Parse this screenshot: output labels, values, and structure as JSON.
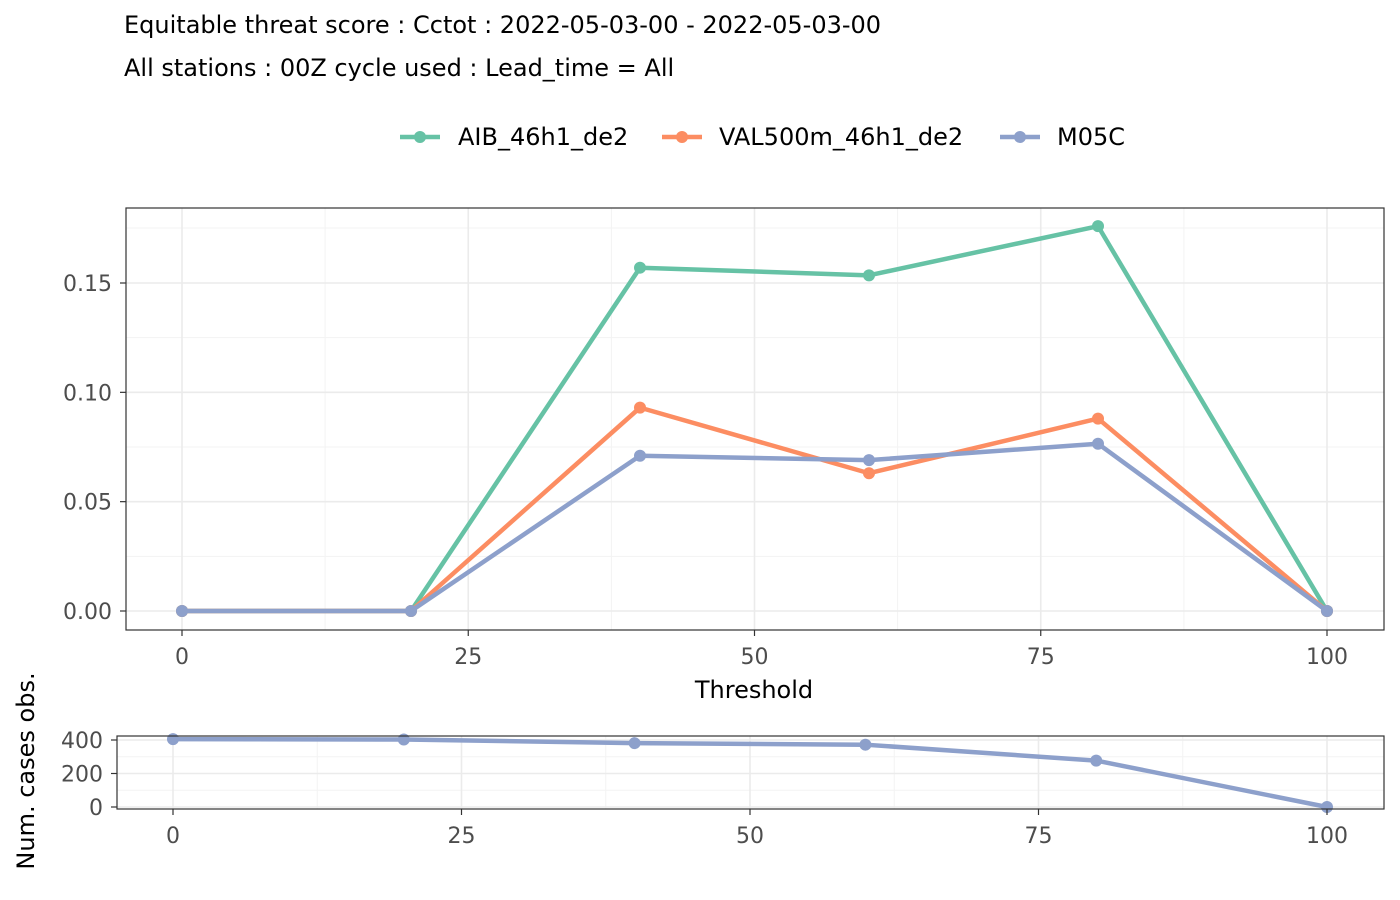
{
  "title_line1": "Equitable threat score : Cctot : 2022-05-03-00 - 2022-05-03-00",
  "title_line2": "All stations : 00Z cycle used : Lead_time = All",
  "chart_data": [
    {
      "type": "line",
      "xlabel": "Threshold",
      "ylabel": "",
      "xlim": [
        -2,
        105
      ],
      "ylim": [
        -0.007,
        0.153
      ],
      "ylim_note": "",
      "x": [
        0,
        20,
        40,
        60,
        80,
        100
      ],
      "xticks": [
        0,
        25,
        50,
        75,
        100
      ],
      "yticks": [
        0.0,
        0.05,
        0.1,
        0.15
      ],
      "ytick_labels": [
        "0.00",
        "0.05",
        "0.10",
        "0.15"
      ],
      "xtick_labels": [
        "0",
        "25",
        "50",
        "75",
        "100"
      ],
      "grid": true,
      "legend_position": "top",
      "series": [
        {
          "name": "AIB_46h1_de2",
          "color": "#66c2a5",
          "values": [
            0,
            0,
            0.157,
            0.1535,
            0.176,
            0
          ]
        },
        {
          "name": "VAL500m_46h1_de2",
          "color": "#fc8d62",
          "values": [
            0,
            0,
            0.093,
            0.063,
            0.088,
            0
          ]
        },
        {
          "name": "M05C",
          "color": "#8da0cb",
          "values": [
            0,
            0,
            0.071,
            0.069,
            0.0765,
            0
          ]
        }
      ]
    },
    {
      "type": "line",
      "xlabel": "",
      "ylabel": "Num. cases obs.",
      "x": [
        0,
        20,
        40,
        60,
        80,
        100
      ],
      "xticks": [
        0,
        25,
        50,
        75,
        100
      ],
      "xtick_labels": [
        "0",
        "25",
        "50",
        "75",
        "100"
      ],
      "yticks": [
        0,
        200,
        400
      ],
      "ytick_labels": [
        "0",
        "200",
        "400"
      ],
      "grid": true,
      "series": [
        {
          "name": "M05C",
          "color": "#8da0cb",
          "values": [
            405,
            403,
            381,
            372,
            277,
            0
          ]
        }
      ]
    }
  ]
}
